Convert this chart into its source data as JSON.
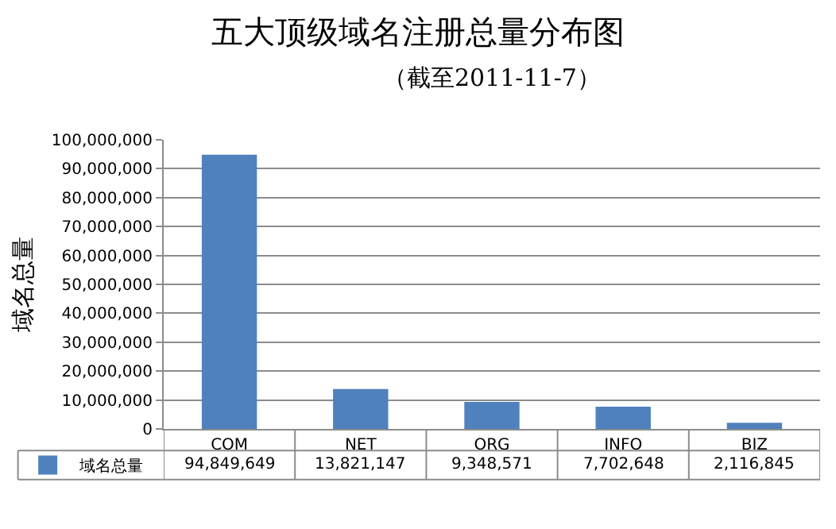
{
  "chart_data": {
    "type": "bar",
    "title": "五大顶级域名注册总量分布图",
    "subtitle": "（截至2011-11-7）",
    "ylabel": "域名总量",
    "categories": [
      "COM",
      "NET",
      "ORG",
      "INFO",
      "BIZ"
    ],
    "series": [
      {
        "name": "域名总量",
        "color": "#4f81bd",
        "values": [
          94849649,
          13821147,
          9348571,
          7702648,
          2116845
        ],
        "value_labels": [
          "94,849,649",
          "13,821,147",
          "9,348,571",
          "7,702,648",
          "2,116,845"
        ]
      }
    ],
    "ylim": [
      0,
      100000000
    ],
    "yticks": [
      {
        "value": 0,
        "label": "0"
      },
      {
        "value": 10000000,
        "label": "10,000,000"
      },
      {
        "value": 20000000,
        "label": "20,000,000"
      },
      {
        "value": 30000000,
        "label": "30,000,000"
      },
      {
        "value": 40000000,
        "label": "40,000,000"
      },
      {
        "value": 50000000,
        "label": "50,000,000"
      },
      {
        "value": 60000000,
        "label": "60,000,000"
      },
      {
        "value": 70000000,
        "label": "70,000,000"
      },
      {
        "value": 80000000,
        "label": "80,000,000"
      },
      {
        "value": 90000000,
        "label": "90,000,000"
      },
      {
        "value": 100000000,
        "label": "100,000,000"
      }
    ],
    "grid": "y",
    "legend": "bottom left"
  }
}
